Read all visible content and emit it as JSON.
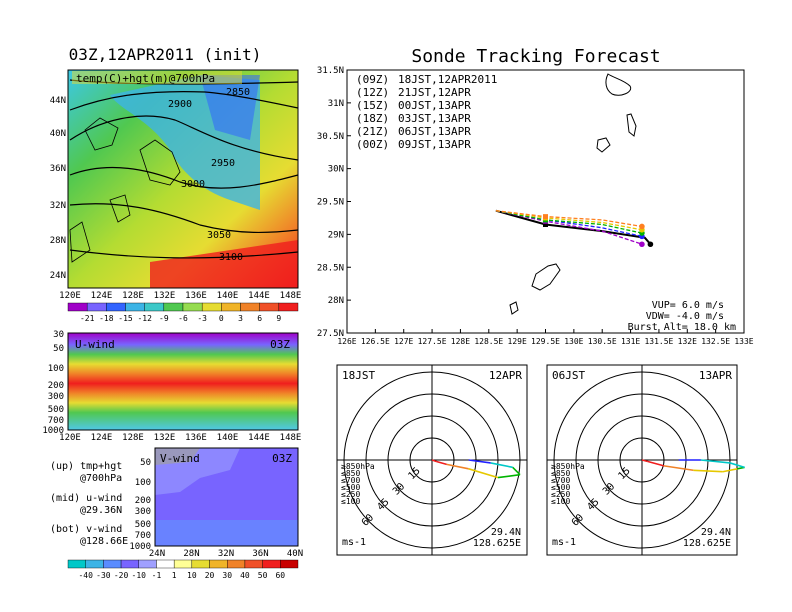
{
  "left_title": "03Z,12APR2011 (init)",
  "right_title": "Sonde Tracking Forecast",
  "map": {
    "label": "temp(C)+hgt(m)@700hPa",
    "contours": [
      "2850",
      "2900",
      "2950",
      "3000",
      "3050",
      "3100"
    ],
    "lat_ticks": [
      "44N",
      "40N",
      "36N",
      "32N",
      "28N",
      "24N"
    ],
    "lon_ticks": [
      "120E",
      "124E",
      "128E",
      "132E",
      "136E",
      "140E",
      "144E",
      "148E"
    ],
    "colorbar": [
      "-21",
      "-18",
      "-15",
      "-12",
      "-9",
      "-6",
      "-3",
      "0",
      "3",
      "6",
      "9"
    ]
  },
  "uwind": {
    "label": "U-wind",
    "time": "03Z",
    "levels": [
      "30",
      "50",
      "100",
      "200",
      "300",
      "500",
      "700",
      "1000"
    ],
    "lon_ticks": [
      "120E",
      "124E",
      "128E",
      "132E",
      "136E",
      "140E",
      "144E",
      "148E"
    ]
  },
  "vwind": {
    "label": "V-wind",
    "time": "03Z",
    "levels": [
      "50",
      "100",
      "200",
      "300",
      "500",
      "700",
      "1000"
    ],
    "lat_ticks": [
      "24N",
      "28N",
      "32N",
      "36N",
      "40N"
    ],
    "colorbar": [
      "-40",
      "-30",
      "-20",
      "-10",
      "-1",
      "1",
      "10",
      "20",
      "30",
      "40",
      "50",
      "60"
    ]
  },
  "legend_left": [
    "(up) tmp+hgt",
    "@700hPa",
    "(mid) u-wind",
    "@29.36N",
    "(bot) v-wind",
    "@128.66E"
  ],
  "track_legend": [
    {
      "run": "(09Z)",
      "label": "18JST,12APR2011",
      "color": "#000000"
    },
    {
      "run": "(12Z)",
      "label": "21JST,12APR",
      "color": "#a000c8"
    },
    {
      "run": "(15Z)",
      "label": "00JST,13APR",
      "color": "#2020ff"
    },
    {
      "run": "(18Z)",
      "label": "03JST,13APR",
      "color": "#00b400"
    },
    {
      "run": "(21Z)",
      "label": "06JST,13APR",
      "color": "#e6c800"
    },
    {
      "run": "(00Z)",
      "label": "09JST,13APR",
      "color": "#ff8020"
    }
  ],
  "track_info": [
    "VUP= 6.0 m/s",
    "VDW= -4.0 m/s",
    "Burst Alt= 18.0 km"
  ],
  "track_axes": {
    "lat_ticks": [
      "31.5N",
      "31N",
      "30.5N",
      "30N",
      "29.5N",
      "29N",
      "28.5N",
      "28N",
      "27.5N"
    ],
    "lon_ticks": [
      "126E",
      "126.5E",
      "127E",
      "127.5E",
      "128E",
      "128.5E",
      "129E",
      "129.5E",
      "130E",
      "130.5E",
      "131E",
      "131.5E",
      "132E",
      "132.5E",
      "133E"
    ]
  },
  "chart_data": [
    {
      "type": "line",
      "title": "Sonde Tracking Forecast",
      "xlim": [
        126,
        133
      ],
      "ylim": [
        27.5,
        31.5
      ],
      "series": [
        {
          "name": "(09Z) 18JST,12APR2011",
          "x": [
            128.625,
            129.5,
            130.5,
            131.25,
            131.35
          ],
          "y": [
            29.36,
            29.15,
            29.05,
            28.95,
            28.85
          ]
        },
        {
          "name": "(12Z) 21JST,12APR",
          "x": [
            128.625,
            129.5,
            130.5,
            131.2
          ],
          "y": [
            29.36,
            29.2,
            29.05,
            28.85
          ]
        },
        {
          "name": "(15Z) 00JST,13APR",
          "x": [
            128.625,
            129.5,
            130.5,
            131.2
          ],
          "y": [
            29.36,
            29.22,
            29.1,
            28.97
          ]
        },
        {
          "name": "(18Z) 03JST,13APR",
          "x": [
            128.625,
            129.5,
            130.5,
            131.2
          ],
          "y": [
            29.36,
            29.22,
            29.15,
            29.02
          ]
        },
        {
          "name": "(21Z) 06JST,13APR",
          "x": [
            128.625,
            129.5,
            130.5,
            131.2
          ],
          "y": [
            29.36,
            29.25,
            29.18,
            29.07
          ]
        },
        {
          "name": "(00Z) 09JST,13APR",
          "x": [
            128.625,
            129.5,
            130.5,
            131.2
          ],
          "y": [
            29.36,
            29.27,
            29.22,
            29.12
          ]
        }
      ]
    },
    {
      "type": "hodograph",
      "time_label": "18JST",
      "date_label": "12APR",
      "rings": [
        "15",
        "30",
        "45",
        "60"
      ],
      "levels": [
        "≥850hPa",
        "≤850",
        "≤700",
        "≤500",
        "≤250",
        "≤100"
      ],
      "location": [
        "29.4N",
        "128.625E"
      ],
      "unit": "ms-1",
      "u": [
        0,
        3,
        10,
        25,
        45,
        60,
        55,
        40,
        25
      ],
      "v": [
        0,
        -1,
        -3,
        -6,
        -12,
        -10,
        -5,
        -2,
        0
      ]
    },
    {
      "type": "hodograph",
      "time_label": "06JST",
      "date_label": "13APR",
      "rings": [
        "15",
        "30",
        "45",
        "60"
      ],
      "levels": [
        "≥850hPa",
        "≤850",
        "≤700",
        "≤500",
        "≤250",
        "≤100"
      ],
      "location": [
        "29.4N",
        "128.625E"
      ],
      "unit": "ms-1",
      "u": [
        0,
        4,
        15,
        35,
        55,
        65,
        70,
        60,
        40,
        25
      ],
      "v": [
        0,
        -1,
        -4,
        -7,
        -8,
        -6,
        -5,
        -2,
        0,
        0
      ]
    }
  ],
  "colors": {
    "cold_purple": "#a000c8",
    "blue": "#3264ff",
    "cyan": "#00c8c8",
    "green": "#50c850",
    "yellow": "#e6dc32",
    "orange": "#f08228",
    "red": "#f01e1e"
  }
}
